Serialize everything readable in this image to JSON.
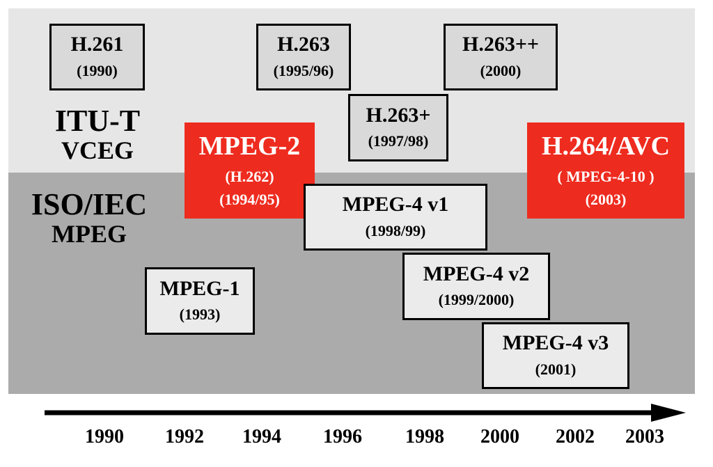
{
  "groups": {
    "itu_line1": "ITU-T",
    "itu_line2": "VCEG",
    "iso_line1": "ISO/IEC",
    "iso_line2": "MPEG"
  },
  "boxes": {
    "h261": {
      "name": "H.261",
      "date": "(1990)"
    },
    "h263": {
      "name": "H.263",
      "date": "(1995/96)"
    },
    "h263pp": {
      "name": "H.263++",
      "date": "(2000)"
    },
    "h263p": {
      "name": "H.263+",
      "date": "(1997/98)"
    },
    "mpeg2": {
      "name": "MPEG-2",
      "alias": "(H.262)",
      "date": "(1994/95)"
    },
    "h264": {
      "name": "H.264/AVC",
      "alias": "( MPEG-4-10 )",
      "date": "(2003)"
    },
    "mpeg4v1": {
      "name": "MPEG-4 v1",
      "date": "(1998/99)"
    },
    "mpeg4v2": {
      "name": "MPEG-4 v2",
      "date": "(1999/2000)"
    },
    "mpeg4v3": {
      "name": "MPEG-4 v3",
      "date": "(2001)"
    },
    "mpeg1": {
      "name": "MPEG-1",
      "date": "(1993)"
    }
  },
  "timeline": {
    "years": [
      "1990",
      "1992",
      "1994",
      "1996",
      "1998",
      "2000",
      "2002",
      "2003"
    ]
  },
  "colors": {
    "itu_band": "#e6e6e6",
    "iso_band": "#ababab",
    "highlight": "#ee2b1f"
  }
}
